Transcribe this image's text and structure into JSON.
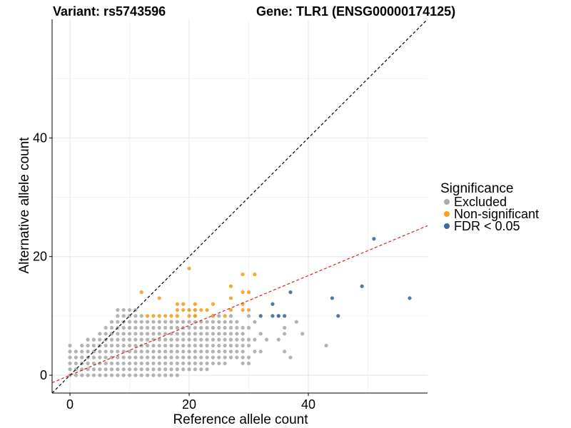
{
  "chart_data": {
    "type": "scatter",
    "title_left": "Variant: rs5743596",
    "title_right": "Gene: TLR1 (ENSG00000174125)",
    "xlabel": "Reference allele count",
    "ylabel": "Alternative allele count",
    "xlim": [
      -3,
      60
    ],
    "ylim": [
      -3,
      60
    ],
    "x_ticks": [
      0,
      20,
      40
    ],
    "y_ticks": [
      0,
      20,
      40
    ],
    "grid": true,
    "legend": {
      "title": "Significance",
      "position": "right",
      "entries": [
        {
          "label": "Excluded",
          "color": "#ABABAB"
        },
        {
          "label": "Non-significant",
          "color": "#F5A021"
        },
        {
          "label": "FDR < 0.05",
          "color": "#40699C"
        }
      ]
    },
    "reference_lines": [
      {
        "name": "identity",
        "slope": 1,
        "intercept": 0,
        "color": "#000000",
        "dash": true
      },
      {
        "name": "fit",
        "slope": 0.42,
        "intercept": 0,
        "color": "#E41A1C",
        "dash": true
      }
    ],
    "series": [
      {
        "name": "Excluded",
        "color": "#ABABAB",
        "points": [
          [
            0,
            0
          ],
          [
            1,
            0
          ],
          [
            2,
            0
          ],
          [
            3,
            0
          ],
          [
            4,
            0
          ],
          [
            5,
            0
          ],
          [
            6,
            0
          ],
          [
            7,
            0
          ],
          [
            8,
            0
          ],
          [
            9,
            0
          ],
          [
            10,
            0
          ],
          [
            11,
            0
          ],
          [
            12,
            0
          ],
          [
            13,
            0
          ],
          [
            14,
            0
          ],
          [
            15,
            0
          ],
          [
            16,
            0
          ],
          [
            17,
            0
          ],
          [
            18,
            0
          ],
          [
            0,
            1
          ],
          [
            1,
            1
          ],
          [
            2,
            1
          ],
          [
            3,
            1
          ],
          [
            4,
            1
          ],
          [
            5,
            1
          ],
          [
            6,
            1
          ],
          [
            7,
            1
          ],
          [
            8,
            1
          ],
          [
            9,
            1
          ],
          [
            10,
            1
          ],
          [
            11,
            1
          ],
          [
            12,
            1
          ],
          [
            13,
            1
          ],
          [
            14,
            1
          ],
          [
            15,
            1
          ],
          [
            16,
            1
          ],
          [
            17,
            1
          ],
          [
            18,
            1
          ],
          [
            19,
            1
          ],
          [
            20,
            1
          ],
          [
            21,
            1
          ],
          [
            22,
            1
          ],
          [
            23,
            1
          ],
          [
            0,
            2
          ],
          [
            1,
            2
          ],
          [
            2,
            2
          ],
          [
            3,
            2
          ],
          [
            4,
            2
          ],
          [
            5,
            2
          ],
          [
            6,
            2
          ],
          [
            7,
            2
          ],
          [
            8,
            2
          ],
          [
            9,
            2
          ],
          [
            10,
            2
          ],
          [
            11,
            2
          ],
          [
            12,
            2
          ],
          [
            13,
            2
          ],
          [
            14,
            2
          ],
          [
            15,
            2
          ],
          [
            16,
            2
          ],
          [
            17,
            2
          ],
          [
            18,
            2
          ],
          [
            19,
            2
          ],
          [
            20,
            2
          ],
          [
            21,
            2
          ],
          [
            22,
            2
          ],
          [
            23,
            2
          ],
          [
            24,
            2
          ],
          [
            25,
            2
          ],
          [
            26,
            2
          ],
          [
            29,
            2
          ],
          [
            30,
            2
          ],
          [
            37,
            3
          ],
          [
            0,
            3
          ],
          [
            1,
            3
          ],
          [
            2,
            3
          ],
          [
            3,
            3
          ],
          [
            4,
            3
          ],
          [
            5,
            3
          ],
          [
            6,
            3
          ],
          [
            7,
            3
          ],
          [
            8,
            3
          ],
          [
            9,
            3
          ],
          [
            10,
            3
          ],
          [
            11,
            3
          ],
          [
            12,
            3
          ],
          [
            13,
            3
          ],
          [
            14,
            3
          ],
          [
            15,
            3
          ],
          [
            16,
            3
          ],
          [
            17,
            3
          ],
          [
            18,
            3
          ],
          [
            19,
            3
          ],
          [
            20,
            3
          ],
          [
            21,
            3
          ],
          [
            22,
            3
          ],
          [
            23,
            3
          ],
          [
            24,
            3
          ],
          [
            25,
            3
          ],
          [
            26,
            3
          ],
          [
            27,
            3
          ],
          [
            28,
            3
          ],
          [
            29,
            3
          ],
          [
            30,
            3
          ],
          [
            0,
            4
          ],
          [
            1,
            4
          ],
          [
            2,
            4
          ],
          [
            3,
            4
          ],
          [
            4,
            4
          ],
          [
            5,
            4
          ],
          [
            6,
            4
          ],
          [
            7,
            4
          ],
          [
            8,
            4
          ],
          [
            9,
            4
          ],
          [
            10,
            4
          ],
          [
            11,
            4
          ],
          [
            12,
            4
          ],
          [
            13,
            4
          ],
          [
            14,
            4
          ],
          [
            15,
            4
          ],
          [
            16,
            4
          ],
          [
            17,
            4
          ],
          [
            18,
            4
          ],
          [
            19,
            4
          ],
          [
            20,
            4
          ],
          [
            21,
            4
          ],
          [
            22,
            4
          ],
          [
            23,
            4
          ],
          [
            24,
            4
          ],
          [
            25,
            4
          ],
          [
            26,
            4
          ],
          [
            27,
            4
          ],
          [
            28,
            4
          ],
          [
            29,
            4
          ],
          [
            31,
            4
          ],
          [
            32,
            4
          ],
          [
            36,
            4
          ],
          [
            0,
            5
          ],
          [
            2,
            5
          ],
          [
            3,
            5
          ],
          [
            4,
            5
          ],
          [
            5,
            5
          ],
          [
            6,
            5
          ],
          [
            7,
            5
          ],
          [
            8,
            5
          ],
          [
            9,
            5
          ],
          [
            10,
            5
          ],
          [
            11,
            5
          ],
          [
            12,
            5
          ],
          [
            13,
            5
          ],
          [
            14,
            5
          ],
          [
            15,
            5
          ],
          [
            16,
            5
          ],
          [
            17,
            5
          ],
          [
            18,
            5
          ],
          [
            19,
            5
          ],
          [
            20,
            5
          ],
          [
            21,
            5
          ],
          [
            22,
            5
          ],
          [
            23,
            5
          ],
          [
            24,
            5
          ],
          [
            25,
            5
          ],
          [
            26,
            5
          ],
          [
            27,
            5
          ],
          [
            28,
            5
          ],
          [
            29,
            5
          ],
          [
            30,
            5
          ],
          [
            43,
            5
          ],
          [
            3,
            6
          ],
          [
            4,
            6
          ],
          [
            5,
            6
          ],
          [
            6,
            6
          ],
          [
            7,
            6
          ],
          [
            8,
            6
          ],
          [
            9,
            6
          ],
          [
            10,
            6
          ],
          [
            11,
            6
          ],
          [
            12,
            6
          ],
          [
            13,
            6
          ],
          [
            14,
            6
          ],
          [
            15,
            6
          ],
          [
            16,
            6
          ],
          [
            17,
            6
          ],
          [
            18,
            6
          ],
          [
            19,
            6
          ],
          [
            20,
            6
          ],
          [
            21,
            6
          ],
          [
            22,
            6
          ],
          [
            23,
            6
          ],
          [
            24,
            6
          ],
          [
            25,
            6
          ],
          [
            26,
            6
          ],
          [
            27,
            6
          ],
          [
            28,
            6
          ],
          [
            29,
            6
          ],
          [
            30,
            6
          ],
          [
            31,
            6
          ],
          [
            33,
            6
          ],
          [
            35,
            6
          ],
          [
            5,
            7
          ],
          [
            6,
            7
          ],
          [
            7,
            7
          ],
          [
            8,
            7
          ],
          [
            9,
            7
          ],
          [
            10,
            7
          ],
          [
            11,
            7
          ],
          [
            12,
            7
          ],
          [
            13,
            7
          ],
          [
            14,
            7
          ],
          [
            15,
            7
          ],
          [
            16,
            7
          ],
          [
            17,
            7
          ],
          [
            18,
            7
          ],
          [
            19,
            7
          ],
          [
            20,
            7
          ],
          [
            21,
            7
          ],
          [
            22,
            7
          ],
          [
            23,
            7
          ],
          [
            24,
            7
          ],
          [
            25,
            7
          ],
          [
            26,
            7
          ],
          [
            27,
            7
          ],
          [
            28,
            7
          ],
          [
            29,
            7
          ],
          [
            32,
            7
          ],
          [
            36,
            7
          ],
          [
            39,
            7
          ],
          [
            6,
            8
          ],
          [
            7,
            8
          ],
          [
            8,
            8
          ],
          [
            9,
            8
          ],
          [
            10,
            8
          ],
          [
            11,
            8
          ],
          [
            12,
            8
          ],
          [
            13,
            8
          ],
          [
            14,
            8
          ],
          [
            15,
            8
          ],
          [
            16,
            8
          ],
          [
            17,
            8
          ],
          [
            18,
            8
          ],
          [
            19,
            8
          ],
          [
            20,
            8
          ],
          [
            21,
            8
          ],
          [
            22,
            8
          ],
          [
            23,
            8
          ],
          [
            24,
            8
          ],
          [
            25,
            8
          ],
          [
            26,
            8
          ],
          [
            27,
            8
          ],
          [
            28,
            8
          ],
          [
            29,
            8
          ],
          [
            30,
            8
          ],
          [
            36,
            8
          ],
          [
            7,
            9
          ],
          [
            8,
            9
          ],
          [
            9,
            9
          ],
          [
            10,
            9
          ],
          [
            11,
            9
          ],
          [
            12,
            9
          ],
          [
            13,
            9
          ],
          [
            14,
            9
          ],
          [
            15,
            9
          ],
          [
            16,
            9
          ],
          [
            17,
            9
          ],
          [
            18,
            9
          ],
          [
            19,
            9
          ],
          [
            20,
            9
          ],
          [
            21,
            9
          ],
          [
            22,
            9
          ],
          [
            23,
            9
          ],
          [
            24,
            9
          ],
          [
            25,
            9
          ],
          [
            26,
            9
          ],
          [
            27,
            9
          ],
          [
            28,
            9
          ],
          [
            31,
            9
          ],
          [
            38,
            9
          ],
          [
            8,
            10
          ],
          [
            9,
            10
          ],
          [
            10,
            10
          ],
          [
            11,
            10
          ],
          [
            12,
            10
          ],
          [
            21,
            10
          ],
          [
            24,
            10
          ],
          [
            25,
            10
          ],
          [
            27,
            10
          ],
          [
            30,
            10
          ],
          [
            35,
            10
          ],
          [
            8,
            11
          ],
          [
            9,
            11
          ],
          [
            10,
            11
          ],
          [
            11,
            11
          ],
          [
            20,
            11
          ],
          [
            21,
            11
          ]
        ]
      },
      {
        "name": "Non-significant",
        "color": "#F5A021",
        "points": [
          [
            12,
            14
          ],
          [
            15,
            13
          ],
          [
            20,
            18
          ],
          [
            13,
            10
          ],
          [
            14,
            10
          ],
          [
            15,
            10
          ],
          [
            16,
            10
          ],
          [
            17,
            10
          ],
          [
            18,
            10
          ],
          [
            18,
            11
          ],
          [
            18,
            12
          ],
          [
            19,
            11
          ],
          [
            19,
            12
          ],
          [
            20,
            11
          ],
          [
            20,
            10
          ],
          [
            21,
            12
          ],
          [
            21,
            11
          ],
          [
            21,
            10
          ],
          [
            22,
            11
          ],
          [
            23,
            11
          ],
          [
            24,
            12
          ],
          [
            24,
            10
          ],
          [
            26,
            10
          ],
          [
            27,
            11
          ],
          [
            27,
            13
          ],
          [
            27,
            15
          ],
          [
            29,
            11
          ],
          [
            29,
            12
          ],
          [
            29,
            14
          ],
          [
            29,
            17
          ],
          [
            30,
            14
          ],
          [
            30,
            11
          ],
          [
            31,
            17
          ]
        ]
      },
      {
        "name": "FDR < 0.05",
        "color": "#40699C",
        "points": [
          [
            32,
            10
          ],
          [
            34,
            12
          ],
          [
            34,
            10
          ],
          [
            35,
            10
          ],
          [
            36,
            10
          ],
          [
            37,
            14
          ],
          [
            44,
            13
          ],
          [
            45,
            10
          ],
          [
            49,
            15
          ],
          [
            51,
            23
          ],
          [
            57,
            13
          ]
        ]
      }
    ]
  }
}
